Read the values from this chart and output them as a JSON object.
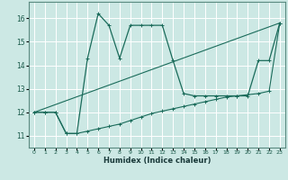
{
  "title": "",
  "xlabel": "Humidex (Indice chaleur)",
  "bg_color": "#cce8e4",
  "grid_color": "#ffffff",
  "line_color": "#1a6b5a",
  "xlim": [
    -0.5,
    23.5
  ],
  "ylim": [
    10.5,
    16.7
  ],
  "xticks": [
    0,
    1,
    2,
    3,
    4,
    5,
    6,
    7,
    8,
    9,
    10,
    11,
    12,
    13,
    14,
    15,
    16,
    17,
    18,
    19,
    20,
    21,
    22,
    23
  ],
  "yticks": [
    11,
    12,
    13,
    14,
    15,
    16
  ],
  "series1_x": [
    0,
    1,
    2,
    3,
    4,
    5,
    6,
    7,
    8,
    9,
    10,
    11,
    12,
    13,
    14,
    15,
    16,
    17,
    18,
    19,
    20,
    21,
    22,
    23
  ],
  "series1_y": [
    12.0,
    12.0,
    12.0,
    11.1,
    11.1,
    14.3,
    16.2,
    15.7,
    14.3,
    15.7,
    15.7,
    15.7,
    15.7,
    14.2,
    12.8,
    12.7,
    12.7,
    12.7,
    12.7,
    12.7,
    12.7,
    14.2,
    14.2,
    15.8
  ],
  "series2_x": [
    0,
    1,
    2,
    3,
    4,
    5,
    6,
    7,
    8,
    9,
    10,
    11,
    12,
    13,
    14,
    15,
    16,
    17,
    18,
    19,
    20,
    21,
    22,
    23
  ],
  "series2_y": [
    12.0,
    12.0,
    12.0,
    11.1,
    11.1,
    11.2,
    11.3,
    11.4,
    11.5,
    11.65,
    11.8,
    11.95,
    12.05,
    12.15,
    12.25,
    12.35,
    12.45,
    12.55,
    12.65,
    12.7,
    12.75,
    12.8,
    12.9,
    15.8
  ],
  "series3_x": [
    0,
    23
  ],
  "series3_y": [
    12.0,
    15.8
  ]
}
